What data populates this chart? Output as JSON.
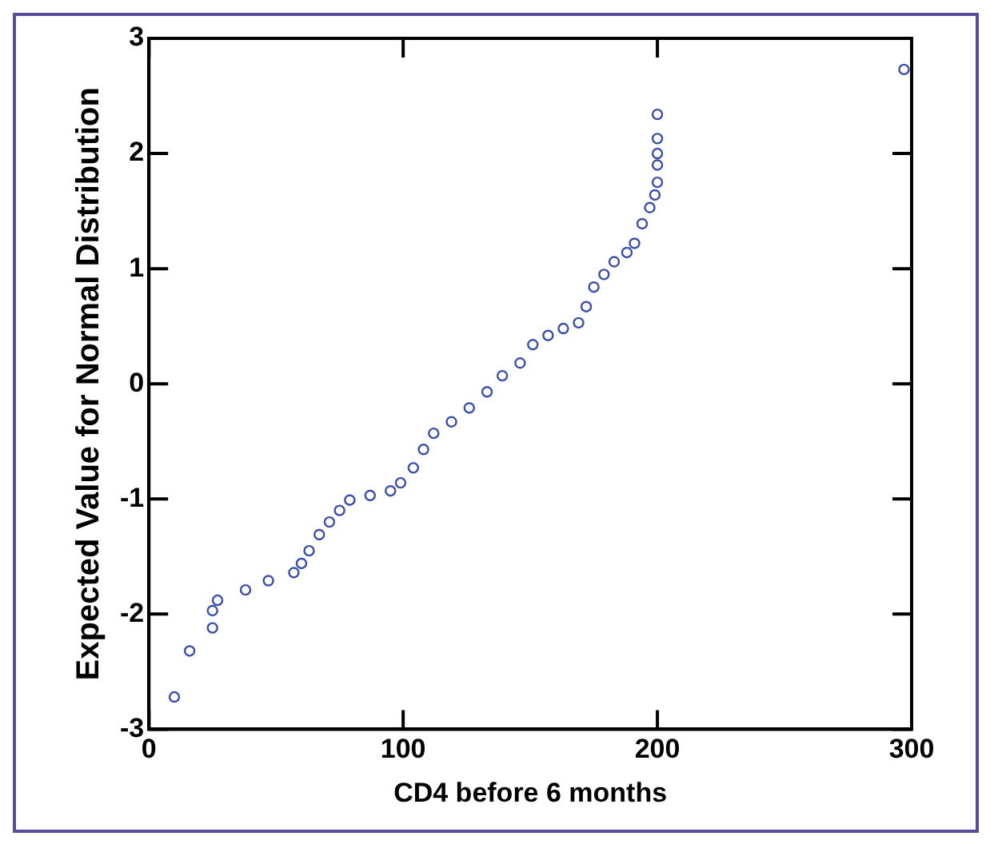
{
  "chart_data": {
    "type": "scatter",
    "xlabel": "CD4 before 6 months",
    "ylabel": "Expected Value for Normal Distribution",
    "xlim": [
      0,
      300
    ],
    "xticks": [
      0,
      100,
      200,
      300
    ],
    "ylim": [
      -3,
      3
    ],
    "yticks": [
      -3,
      -2,
      -1,
      0,
      1,
      2,
      3
    ],
    "grid": false,
    "marker": "circle",
    "series": [
      {
        "color": "#3a4fb0",
        "x": [
          10,
          16,
          25,
          25,
          27,
          38,
          47,
          57,
          60,
          63,
          67,
          71,
          75,
          79,
          87,
          95,
          99,
          104,
          108,
          112,
          119,
          126,
          133,
          139,
          146,
          151,
          157,
          163,
          169,
          172,
          175,
          179,
          183,
          188,
          191,
          194,
          197,
          199,
          200,
          200,
          200,
          200,
          200,
          297
        ],
        "values": [
          -2.72,
          -2.32,
          -2.12,
          -1.97,
          -1.88,
          -1.79,
          -1.71,
          -1.64,
          -1.56,
          -1.45,
          -1.31,
          -1.2,
          -1.1,
          -1.01,
          -0.97,
          -0.93,
          -0.86,
          -0.73,
          -0.57,
          -0.43,
          -0.33,
          -0.21,
          -0.07,
          0.07,
          0.18,
          0.34,
          0.42,
          0.48,
          0.53,
          0.67,
          0.84,
          0.95,
          1.06,
          1.14,
          1.22,
          1.39,
          1.53,
          1.64,
          1.75,
          1.9,
          2.0,
          2.13,
          2.34,
          2.73
        ]
      }
    ]
  }
}
